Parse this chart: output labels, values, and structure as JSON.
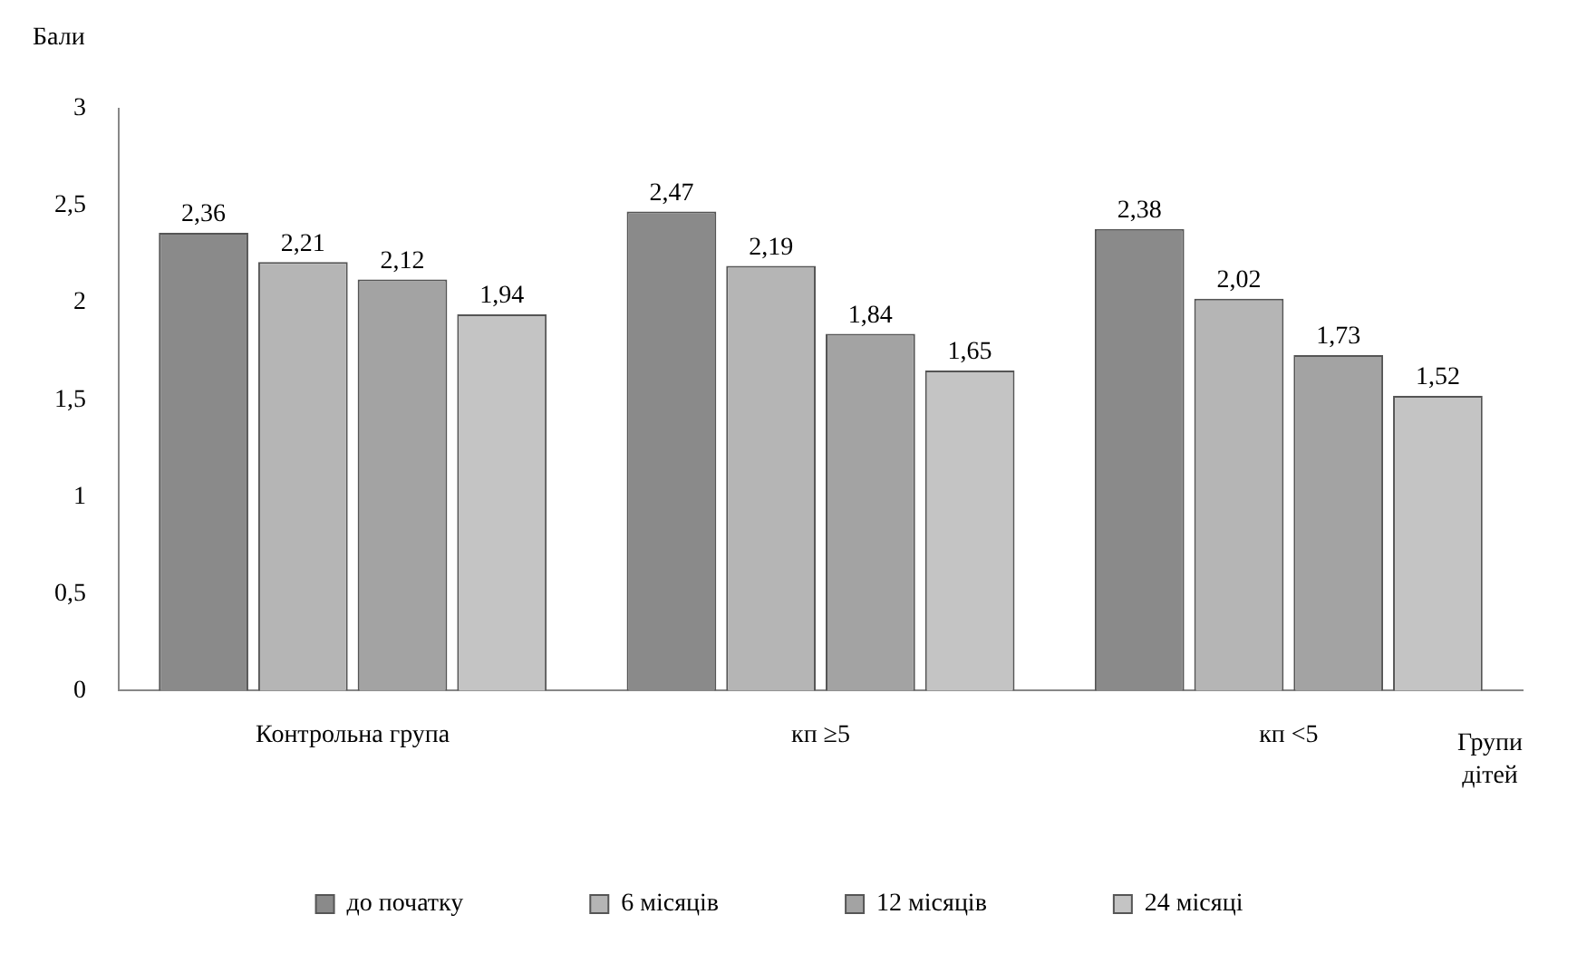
{
  "chart_data": {
    "type": "bar",
    "ylabel": "Бали",
    "xlabel": "Групи дітей",
    "categories": [
      "Контрольна група",
      "кп ≥5",
      "кп <5"
    ],
    "series": [
      {
        "name": "до початку",
        "color": "#8a8a8a",
        "values": [
          2.36,
          2.47,
          2.38
        ],
        "value_labels": [
          "2,36",
          "2,47",
          "2,38"
        ]
      },
      {
        "name": "6 місяців",
        "color": "#b5b5b5",
        "values": [
          2.21,
          2.19,
          2.02
        ],
        "value_labels": [
          "2,21",
          "2,19",
          "2,02"
        ]
      },
      {
        "name": "12 місяців",
        "color": "#a3a3a3",
        "values": [
          2.12,
          1.84,
          1.73
        ],
        "value_labels": [
          "2,12",
          "1,84",
          "1,73"
        ]
      },
      {
        "name": "24 місяці",
        "color": "#c4c4c4",
        "values": [
          1.94,
          1.65,
          1.52
        ],
        "value_labels": [
          "1,94",
          "1,65",
          "1,52"
        ]
      }
    ],
    "ylim": [
      0,
      3
    ],
    "yticks": [
      0,
      {
        "value": 0.5,
        "label": "0,5"
      },
      1,
      {
        "value": 1.5,
        "label": "1,5"
      },
      2,
      {
        "value": 2.5,
        "label": "2,5"
      },
      3
    ],
    "grid": false,
    "legend": "bottom"
  }
}
